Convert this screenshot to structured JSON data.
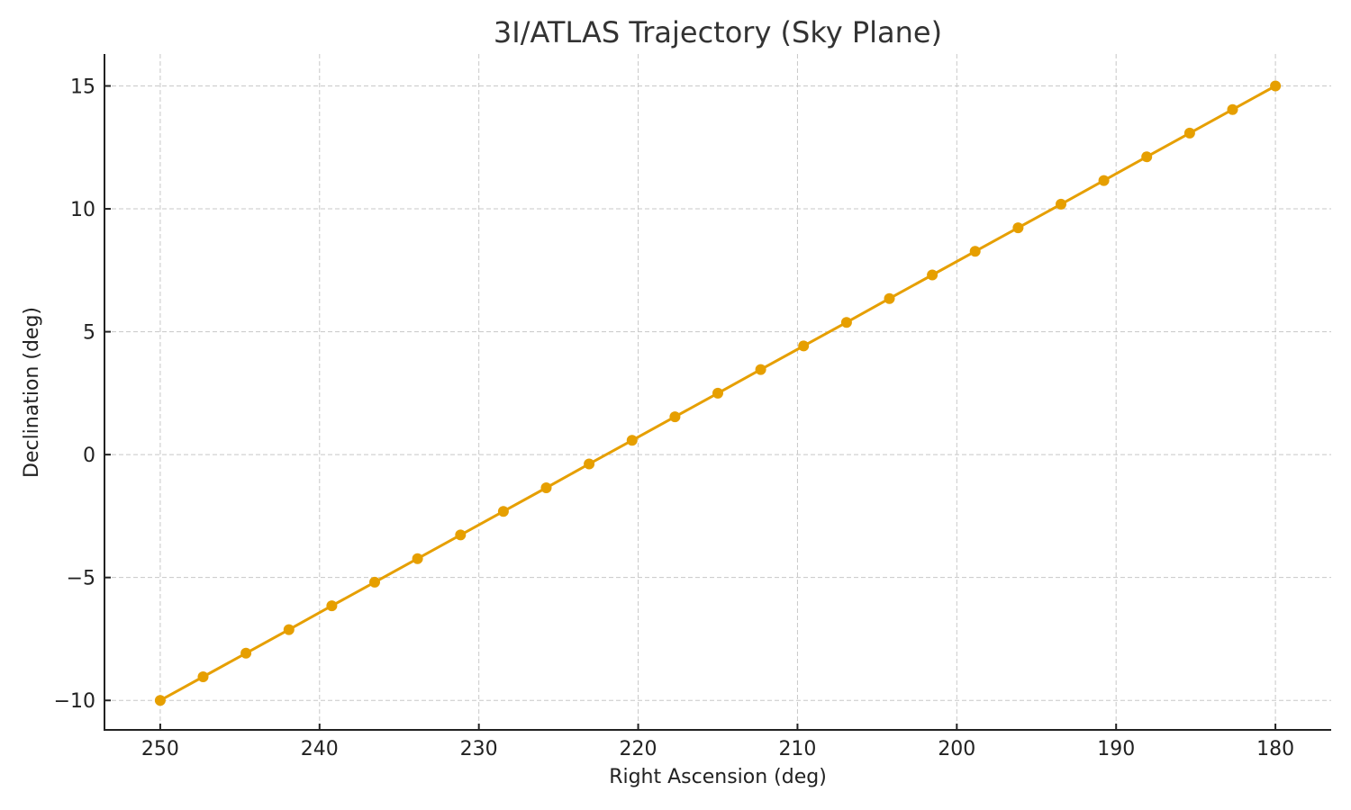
{
  "chart_data": {
    "type": "line",
    "title": "3I/ATLAS Trajectory (Sky Plane)",
    "xlabel": "Right Ascension (deg)",
    "ylabel": "Declination (deg)",
    "x_inverted": true,
    "xlim": [
      253.5,
      176.5
    ],
    "ylim": [
      -11.2,
      16.3
    ],
    "xticks": [
      250,
      240,
      230,
      220,
      210,
      200,
      190,
      180
    ],
    "yticks": [
      -10,
      -5,
      0,
      5,
      10,
      15
    ],
    "xtick_labels": [
      "250",
      "240",
      "230",
      "220",
      "210",
      "200",
      "190",
      "180"
    ],
    "ytick_labels": [
      "−10",
      "−5",
      "0",
      "5",
      "10",
      "15"
    ],
    "grid": true,
    "legend": null,
    "series": [
      {
        "name": "3I/ATLAS",
        "color": "#E69F00",
        "marker": "circle",
        "x": [
          250.0,
          247.31,
          244.62,
          241.92,
          239.23,
          236.54,
          233.85,
          231.15,
          228.46,
          225.77,
          223.08,
          220.38,
          217.69,
          215.0,
          212.31,
          209.62,
          206.92,
          204.23,
          201.54,
          198.85,
          196.15,
          193.46,
          190.77,
          188.08,
          185.38,
          182.69,
          180.0
        ],
        "y": [
          -10.0,
          -9.04,
          -8.08,
          -7.12,
          -6.15,
          -5.19,
          -4.23,
          -3.27,
          -2.31,
          -1.35,
          -0.38,
          0.58,
          1.54,
          2.5,
          3.46,
          4.42,
          5.38,
          6.35,
          7.31,
          8.27,
          9.23,
          10.19,
          11.15,
          12.12,
          13.08,
          14.04,
          15.0
        ]
      }
    ]
  }
}
